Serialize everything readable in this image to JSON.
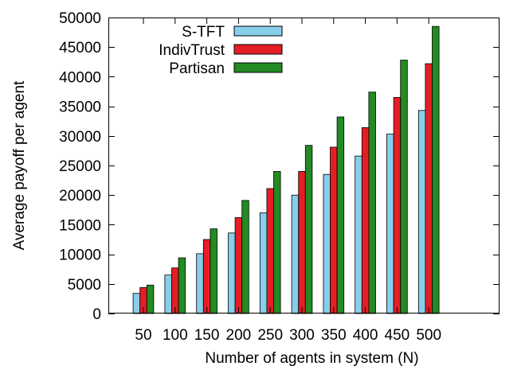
{
  "chart_data": {
    "type": "bar",
    "xlabel": "Number of agents in system (N)",
    "ylabel": "Average payoff per agent",
    "categories": [
      "50",
      "100",
      "150",
      "200",
      "250",
      "300",
      "350",
      "400",
      "450",
      "500"
    ],
    "ylim": [
      0,
      50000
    ],
    "yticks": [
      0,
      5000,
      10000,
      15000,
      20000,
      25000,
      30000,
      35000,
      40000,
      45000,
      50000
    ],
    "grid": false,
    "legend_position": "top-right",
    "series": [
      {
        "name": "S-TFT",
        "color": "#87CEEB",
        "values": [
          3400,
          6500,
          10100,
          13600,
          17000,
          20000,
          23500,
          26600,
          30300,
          34300
        ]
      },
      {
        "name": "IndivTrust",
        "color": "#E51E25",
        "values": [
          4400,
          7700,
          12500,
          16200,
          21100,
          24000,
          28100,
          31400,
          36500,
          42200
        ]
      },
      {
        "name": "Partisan",
        "color": "#228B22",
        "values": [
          4800,
          9400,
          14300,
          19100,
          24000,
          28400,
          33200,
          37400,
          42800,
          48500
        ]
      }
    ]
  }
}
